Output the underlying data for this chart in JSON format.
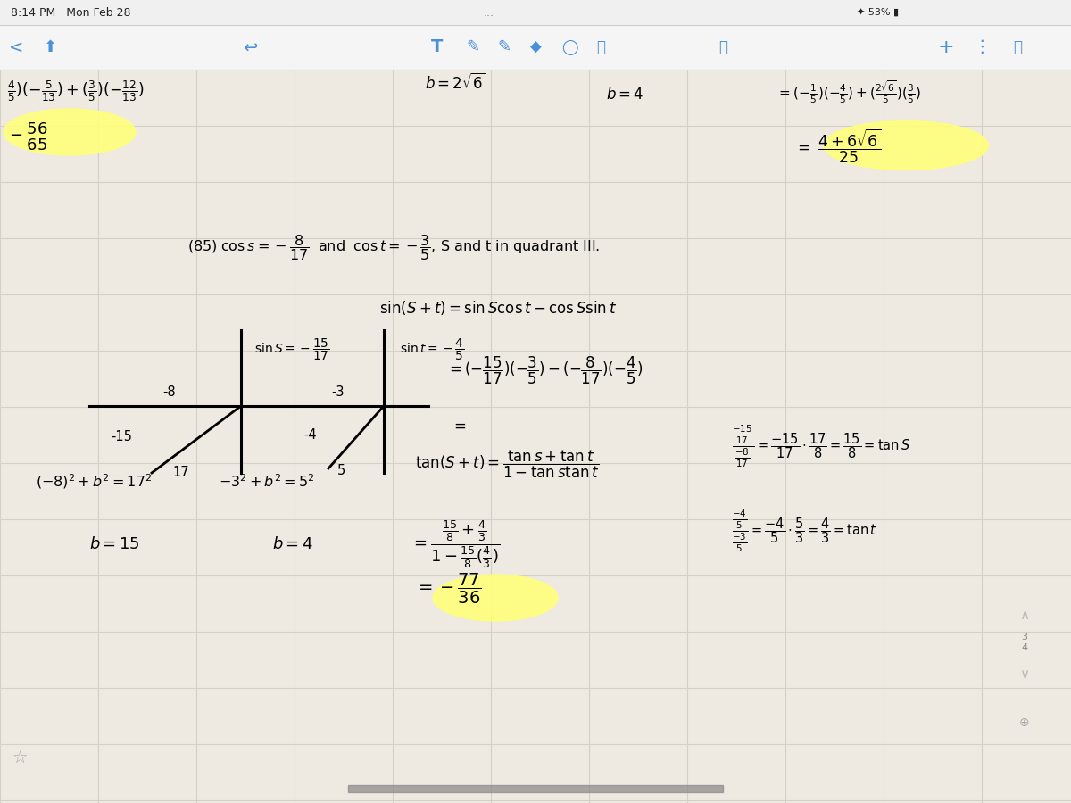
{
  "bg_color": "#eeeae2",
  "grid_color": "#d5d0c5",
  "highlight_yellow": "#ffff7a",
  "text_color": "#000000",
  "blue_icon_color": "#4a90d9",
  "figsize": [
    12,
    9
  ],
  "dpi": 100,
  "toolbar_bg": "#f5f5f5",
  "status_bg": "#f0f0f0"
}
